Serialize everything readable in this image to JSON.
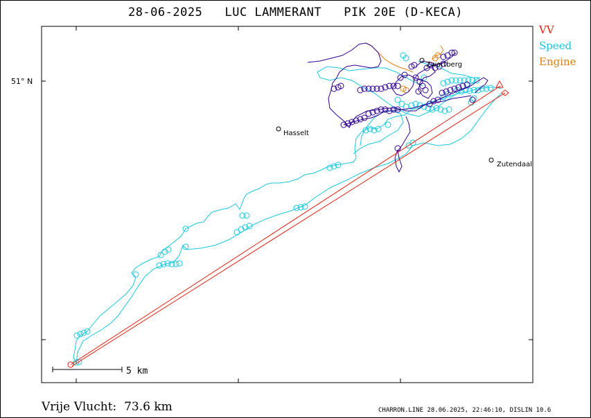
{
  "title": "28-06-2025   LUC LAMMERANT   PIK 20E (D-KECA)",
  "legend": [
    {
      "label": "VV",
      "color": "#e02010"
    },
    {
      "label": "Speed",
      "color": "#18c8e0"
    },
    {
      "label": "Engine",
      "color": "#e08010"
    }
  ],
  "bottom_label": "Vrije Vlucht:  73.6 km",
  "footer": "CHARRON.LINE 28.06.2025, 22:46:10, DISLIN 10.6",
  "chart_data": {
    "type": "map",
    "y_tick_label": "51° N",
    "scale_bar": "5 km",
    "places": [
      {
        "name": "Zwartberg"
      },
      {
        "name": "Hasselt"
      },
      {
        "name": "Zutendaal"
      }
    ],
    "colors": {
      "vv": "#e02010",
      "speed": "#18c8e0",
      "engine": "#e08010",
      "track": "#300090"
    }
  }
}
